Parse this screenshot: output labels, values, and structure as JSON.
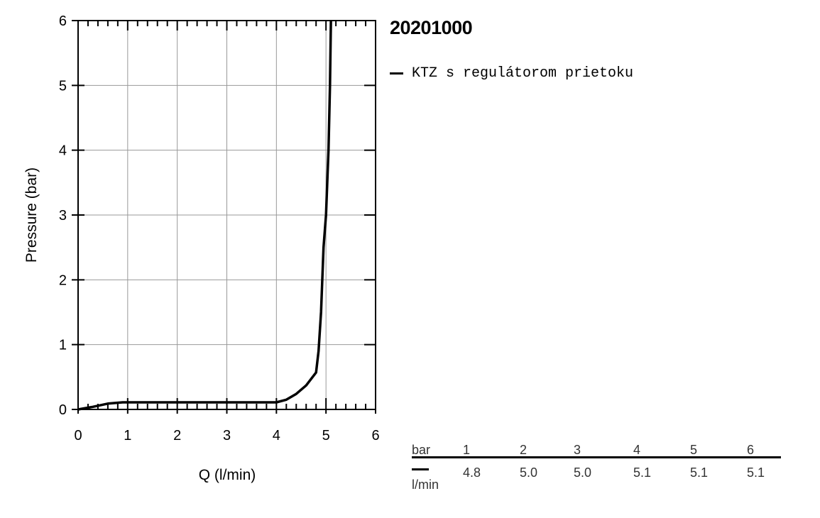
{
  "chart_data": {
    "type": "line",
    "title": "20201000",
    "xlabel": "Q (l/min)",
    "ylabel": "Pressure (bar)",
    "xlim": [
      0,
      6
    ],
    "ylim": [
      0,
      6
    ],
    "x_ticks": [
      "0",
      "1",
      "2",
      "3",
      "4",
      "5",
      "6"
    ],
    "y_ticks": [
      "0",
      "1",
      "2",
      "3",
      "4",
      "5",
      "6"
    ],
    "grid": true,
    "legend_position": "right",
    "series": [
      {
        "name": "KTZ s regulátorom prietoku",
        "color": "#000000",
        "points": [
          [
            0,
            0
          ],
          [
            0.3,
            0.04
          ],
          [
            0.6,
            0.09
          ],
          [
            0.9,
            0.11
          ],
          [
            1.5,
            0.11
          ],
          [
            2.5,
            0.11
          ],
          [
            3.5,
            0.11
          ],
          [
            4.0,
            0.11
          ],
          [
            4.2,
            0.15
          ],
          [
            4.4,
            0.24
          ],
          [
            4.6,
            0.37
          ],
          [
            4.8,
            0.57
          ],
          [
            4.85,
            0.9
          ],
          [
            4.9,
            1.5
          ],
          [
            4.95,
            2.5
          ],
          [
            5.0,
            3.0
          ],
          [
            5.05,
            4.0
          ],
          [
            5.08,
            5.0
          ],
          [
            5.1,
            6.0
          ]
        ]
      }
    ]
  },
  "table": {
    "header_unit": "bar",
    "row_unit": "l/min",
    "pressures": [
      "1",
      "2",
      "3",
      "4",
      "5",
      "6"
    ],
    "flows": [
      "4.8",
      "5.0",
      "5.0",
      "5.1",
      "5.1",
      "5.1"
    ]
  }
}
